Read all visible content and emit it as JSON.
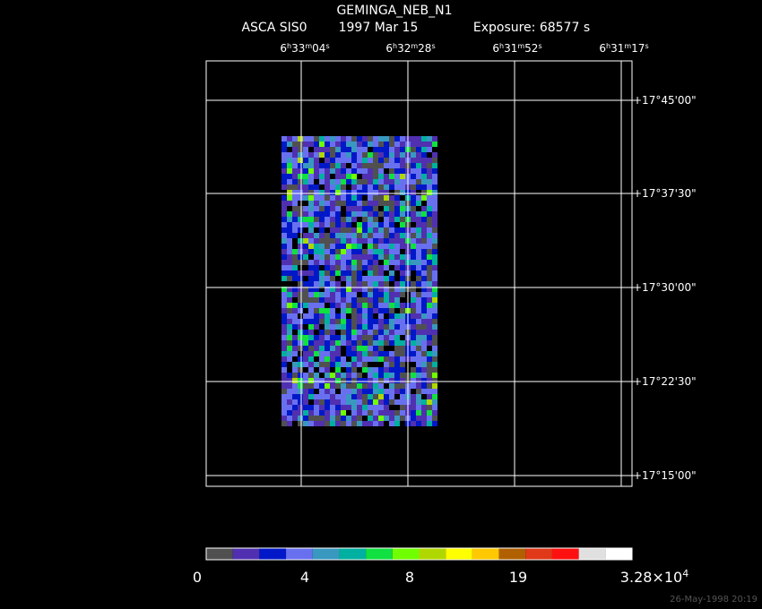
{
  "header": {
    "title": "GEMINGA_NEB_N1",
    "instrument": "ASCA SIS0",
    "date": "1997 Mar 15",
    "exposure": "Exposure: 68577 s"
  },
  "ra_labels": [
    [
      "6",
      "h",
      "33",
      "m",
      "04",
      "s"
    ],
    [
      "6",
      "h",
      "32",
      "m",
      "28",
      "s"
    ],
    [
      "6",
      "h",
      "31",
      "m",
      "52",
      "s"
    ],
    [
      "6",
      "h",
      "31",
      "m",
      "17",
      "s"
    ]
  ],
  "dec_labels": [
    "+17°45'00\"",
    "+17°37'30\"",
    "+17°30'00\"",
    "+17°22'30\"",
    "+17°15'00\""
  ],
  "colorbar": {
    "colors": [
      "#505050",
      "#5030b0",
      "#0018c8",
      "#6870f0",
      "#3898c0",
      "#00b0a0",
      "#10e040",
      "#70ff00",
      "#b0d800",
      "#ffff00",
      "#ffc800",
      "#b06000",
      "#e03818",
      "#ff1010",
      "#e0e0e0",
      "#ffffff"
    ],
    "labels": [
      [
        "0"
      ],
      [
        "4"
      ],
      [
        "8"
      ],
      [
        "19"
      ],
      [
        "3.28×10",
        "4"
      ]
    ]
  },
  "timestamp": "26-May-1998 20:19"
}
